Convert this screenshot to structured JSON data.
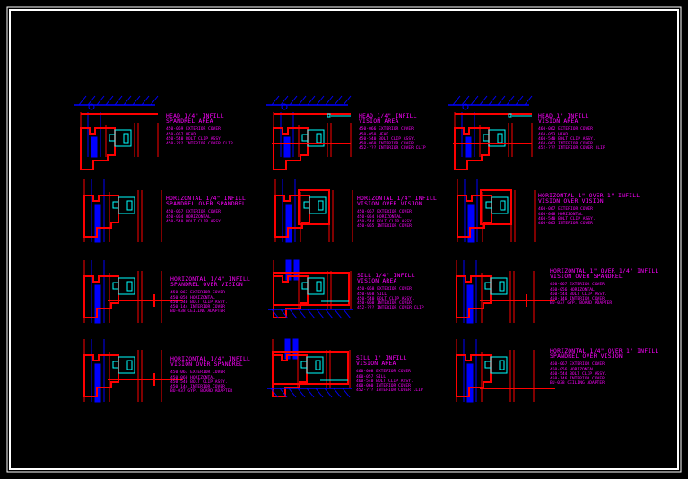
{
  "colors": {
    "background": "#000000",
    "frame": "#ffffff",
    "aluminum": "#ff0000",
    "glass": "#0000ff",
    "anchor": "#00ffff",
    "text": "#ff00ff",
    "structure": "#0000ff"
  },
  "details": [
    {
      "title": [
        "HEAD 1/4\" INFILL",
        "SPANDREL AREA"
      ],
      "parts": [
        "450-069 EXTERIOR COVER",
        "450-057 HEAD",
        "450-540 BOLT CLIP ASSY.",
        "450-??? INTERIOR COVER CLIP"
      ]
    },
    {
      "title": [
        "HEAD 1/4\" INFILL",
        "VISION AREA"
      ],
      "parts": [
        "450-066 EXTERIOR COVER",
        "450-050 HEAD",
        "450-540 BOLT CLIP ASSY.",
        "450-060 INTERIOR COVER",
        "452-??? INTERIOR COVER CLIP"
      ]
    },
    {
      "title": [
        "HEAD 1\" INFILL",
        "VISION AREA"
      ],
      "parts": [
        "460-062 EXTERIOR COVER",
        "460-053 HEAD",
        "460-540 BOLT CLIP ASSY.",
        "460-063 INTERIOR COVER",
        "452-??? INTERIOR COVER CLIP"
      ]
    },
    {
      "title": [
        "HORIZONTAL 1/4\" INFILL",
        "SPANDREL OVER SPANDREL"
      ],
      "parts": [
        "450-067 EXTERIOR COVER",
        "450-054 HORIZONTAL",
        "450-540 BOLT CLIP ASSY."
      ]
    },
    {
      "title": [
        "HORIZONTAL 1/4\" INFILL",
        "VISION OVER VISION"
      ],
      "parts": [
        "450-067 EXTERIOR COVER",
        "450-054 HORIZONTAL",
        "450-544 BOLT CLIP ASSY.",
        "450-065 INTERIOR COVER"
      ]
    },
    {
      "title": [
        "HORIZONTAL 1\" OVER 1\" INFILL",
        "VISION OVER VISION"
      ],
      "parts": [
        "460-067 EXTERIOR COVER",
        "460-048 HORIZONTAL",
        "460-540 BOLT CLIP ASSY.",
        "460-065 INTERIOR COVER"
      ]
    },
    {
      "title": [
        "HORIZONTAL 1/4\" INFILL",
        "SPANDREL OVER VISION"
      ],
      "parts": [
        "450-067 EXTERIOR COVER",
        "450-056 HORIZONTAL",
        "450-540 BOLT CLIP ASSY.",
        "450-144 INTERIOR COVER",
        "BU-038 CEILING ADAPTER"
      ]
    },
    {
      "title": [
        "SILL 1/4\" INFILL",
        "VISION AREA"
      ],
      "parts": [
        "450-068 EXTERIOR COVER",
        "450-058 SILL",
        "450-540 BOLT CLIP ASSY.",
        "450-060 INTERIOR COVER",
        "452-??? INTERIOR COVER CLIP"
      ]
    },
    {
      "title": [
        "HORIZONTAL 1\" OVER 1/4\" INFILL",
        "VISION OVER SPANDREL"
      ],
      "parts": [
        "460-067 EXTERIOR COVER",
        "460-056 HORIZONTAL",
        "460-544 BOLT CLIP ASSY.",
        "450-146 INTERIOR COVER",
        "BU-037 GYP. BOARD ADAPTER"
      ]
    },
    {
      "title": [
        "HORIZONTAL 1/4\" INFILL",
        "VISION OVER SPANDREL"
      ],
      "parts": [
        "450-067 EXTERIOR COVER",
        "450-060 HORIZONTAL",
        "450-540 BOLT CLIP ASSY.",
        "450-144 INTERIOR COVER",
        "BU-037 GYP. BOARD ADAPTER"
      ]
    },
    {
      "title": [
        "SILL 1\" INFILL",
        "VISION AREA"
      ],
      "parts": [
        "460-068 EXTERIOR COVER",
        "460-057 SILL",
        "460-540 BOLT CLIP ASSY.",
        "460-060 INTERIOR COVER",
        "452-??? INTERIOR COVER CLIP"
      ]
    },
    {
      "title": [
        "HORIZONTAL 1/4\" OVER 1\" INFILL",
        "SPANDREL OVER VISION"
      ],
      "parts": [
        "460-067 EXTERIOR COVER",
        "460-056 HORIZONTAL",
        "460-544 BOLT CLIP ASSY.",
        "450-146 INTERIOR COVER",
        "BU-038 CEILING ADAPTER"
      ]
    }
  ]
}
